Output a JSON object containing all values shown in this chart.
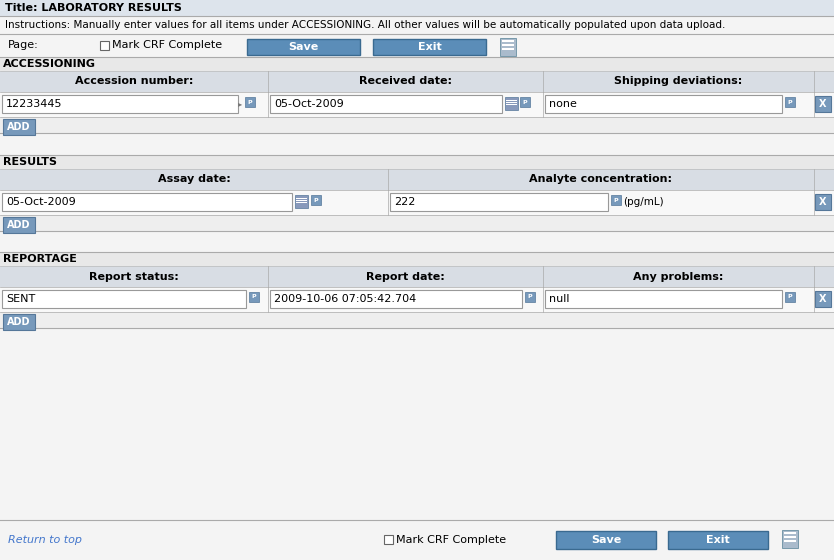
{
  "white": "#ffffff",
  "bg_light": "#f0f0f0",
  "bg_section": "#e8e8e8",
  "bg_row_header": "#d8dde4",
  "bg_input_row": "#f8f8f8",
  "bg_add_row": "#eeeeee",
  "bg_title": "#dde4ec",
  "button_blue": "#5b8db8",
  "flag_blue": "#7799bb",
  "text_dark": "#000000",
  "text_gray": "#555555",
  "link_blue": "#4477cc",
  "border_color": "#aaaaaa",
  "title_text": "Title: LABORATORY RESULTS",
  "instructions_text": "Instructions: Manually enter values for all items under ACCESSIONING. All other values will be automatically populated upon data upload.",
  "page_label": "Page:",
  "mark_crf_label": "Mark CRF Complete",
  "section1_header": "ACCESSIONING",
  "col1_label1": "Accession number:",
  "col2_label1": "Received date:",
  "col3_label1": "Shipping deviations:",
  "val_accession": "12233445",
  "val_received": "05-Oct-2009",
  "val_shipping": "none",
  "section2_header": "RESULTS",
  "col1_label2": "Assay date:",
  "col2_label2": "Analyte concentration:",
  "val_assay": "05-Oct-2009",
  "val_analyte": "222",
  "val_unit": "(pg/mL)",
  "section3_header": "REPORTAGE",
  "col1_label3": "Report status:",
  "col2_label3": "Report date:",
  "col3_label3": "Any problems:",
  "val_status": "SENT",
  "val_report_date": "2009-10-06 07:05:42.704",
  "val_problems": "null",
  "return_to_top": "Return to top",
  "fig_width": 8.34,
  "fig_height": 5.6,
  "dpi": 100
}
